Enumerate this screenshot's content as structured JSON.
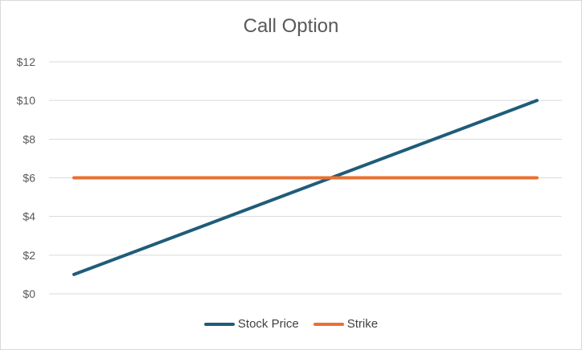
{
  "chart_data": {
    "type": "line",
    "title": "Call Option",
    "xlabel": "",
    "ylabel": "",
    "ylim": [
      0,
      12
    ],
    "y_ticks": [
      "$0",
      "$2",
      "$4",
      "$6",
      "$8",
      "$10",
      "$12"
    ],
    "grid": true,
    "legend_position": "bottom",
    "x": [
      0,
      1
    ],
    "series": [
      {
        "name": "Stock Price",
        "values": [
          1,
          10
        ],
        "color": "#1f5c7a"
      },
      {
        "name": "Strike",
        "values": [
          6,
          6
        ],
        "color": "#e97132"
      }
    ]
  }
}
